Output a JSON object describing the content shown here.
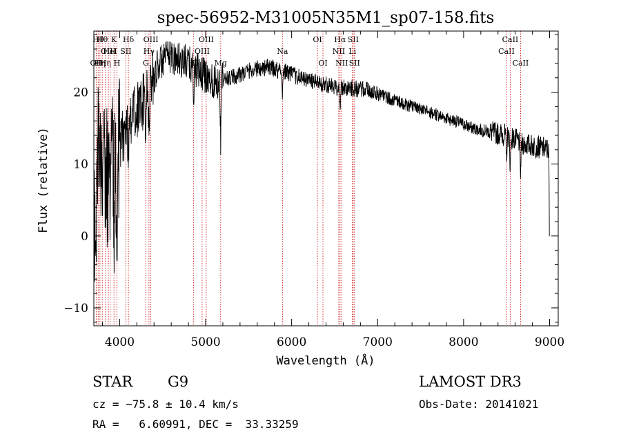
{
  "chart_data": {
    "type": "line",
    "title": "spec-56952-M31005N35M1_sp07-158.fits",
    "xlabel": "Wavelength (Å)",
    "ylabel": "Flux (relative)",
    "xlim": [
      3700,
      9100
    ],
    "ylim": [
      -12.5,
      28.5
    ],
    "x_ticks": [
      4000,
      5000,
      6000,
      7000,
      8000,
      9000
    ],
    "x_tick_labels": [
      "4000",
      "5000",
      "6000",
      "7000",
      "8000",
      "9000"
    ],
    "x_minor_step": 200,
    "y_ticks": [
      -10,
      0,
      10,
      20
    ],
    "y_tick_labels": [
      "−10",
      "0",
      "10",
      "20"
    ],
    "y_minor_step": 2,
    "continuum": [
      [
        3700,
        0
      ],
      [
        3760,
        13
      ],
      [
        3850,
        8
      ],
      [
        3950,
        11
      ],
      [
        4100,
        16
      ],
      [
        4300,
        19
      ],
      [
        4450,
        24
      ],
      [
        4600,
        25
      ],
      [
        4800,
        24
      ],
      [
        4900,
        23
      ],
      [
        5100,
        21.5
      ],
      [
        5300,
        22
      ],
      [
        5500,
        23
      ],
      [
        5700,
        23.5
      ],
      [
        5900,
        23
      ],
      [
        6100,
        22
      ],
      [
        6300,
        21.3
      ],
      [
        6500,
        20.7
      ],
      [
        6700,
        20.6
      ],
      [
        6900,
        20.2
      ],
      [
        7100,
        19.3
      ],
      [
        7300,
        18.4
      ],
      [
        7500,
        17.6
      ],
      [
        7700,
        16.8
      ],
      [
        7900,
        16
      ],
      [
        8100,
        15
      ],
      [
        8300,
        14.5
      ],
      [
        8500,
        14
      ],
      [
        8700,
        12.8
      ],
      [
        8900,
        12.3
      ],
      [
        8990,
        12
      ],
      [
        9000,
        0
      ]
    ],
    "absorption_features": [
      {
        "wl": 3934,
        "depth": 8
      },
      {
        "wl": 3969,
        "depth": 7
      },
      {
        "wl": 4101,
        "depth": 4
      },
      {
        "wl": 4300,
        "depth": 5
      },
      {
        "wl": 4340,
        "depth": 6
      },
      {
        "wl": 4861,
        "depth": 4
      },
      {
        "wl": 5175,
        "depth": 8
      },
      {
        "wl": 5893,
        "depth": 3
      },
      {
        "wl": 6563,
        "depth": 3
      },
      {
        "wl": 8498,
        "depth": 3
      },
      {
        "wl": 8542,
        "depth": 4
      },
      {
        "wl": 8662,
        "depth": 4
      }
    ],
    "line_markers": [
      {
        "wl": 3727,
        "label": "OII",
        "row": 2
      },
      {
        "wl": 3750,
        "label": "Hθ",
        "row": 0
      },
      {
        "wl": 3771,
        "label": "Hη",
        "row": 2
      },
      {
        "wl": 3798,
        "label": "Hθ",
        "row": 0
      },
      {
        "wl": 3835,
        "label": "Hη",
        "row": 2
      },
      {
        "wl": 3869,
        "label": "OIII",
        "row": 1
      },
      {
        "wl": 3889,
        "label": "HeI",
        "row": 1
      },
      {
        "wl": 3934,
        "label": "K",
        "row": 0
      },
      {
        "wl": 3969,
        "label": "H",
        "row": 2
      },
      {
        "wl": 4072,
        "label": "SII",
        "row": 1
      },
      {
        "wl": 4102,
        "label": "Hδ",
        "row": 0
      },
      {
        "wl": 4304,
        "label": "G",
        "row": 2
      },
      {
        "wl": 4341,
        "label": "Hγ",
        "row": 1
      },
      {
        "wl": 4363,
        "label": "OIII",
        "row": 0
      },
      {
        "wl": 4861,
        "label": "Hβ",
        "row": 2
      },
      {
        "wl": 4959,
        "label": "OIII",
        "row": 1
      },
      {
        "wl": 5007,
        "label": "OIII",
        "row": 0
      },
      {
        "wl": 5175,
        "label": "Mg",
        "row": 2
      },
      {
        "wl": 5893,
        "label": "Na",
        "row": 1
      },
      {
        "wl": 6300,
        "label": "OI",
        "row": 0
      },
      {
        "wl": 6364,
        "label": "OI",
        "row": 2
      },
      {
        "wl": 6548,
        "label": "NII",
        "row": 1
      },
      {
        "wl": 6563,
        "label": "Hα",
        "row": 0
      },
      {
        "wl": 6583,
        "label": "NII",
        "row": 2
      },
      {
        "wl": 6707,
        "label": "Li",
        "row": 1
      },
      {
        "wl": 6716,
        "label": "SII",
        "row": 0
      },
      {
        "wl": 6731,
        "label": "SII",
        "row": 2
      },
      {
        "wl": 8498,
        "label": "CaII",
        "row": 1
      },
      {
        "wl": 8542,
        "label": "CaII",
        "row": 0
      },
      {
        "wl": 8662,
        "label": "CaII",
        "row": 2
      }
    ]
  },
  "info": {
    "class_label": "STAR",
    "subclass": "G9",
    "survey": "LAMOST DR3",
    "cz": "cz = −75.8 ± 10.4 km/s",
    "obs_date": "Obs-Date: 20141021",
    "coords": "RA =   6.60991, DEC =  33.33259"
  }
}
